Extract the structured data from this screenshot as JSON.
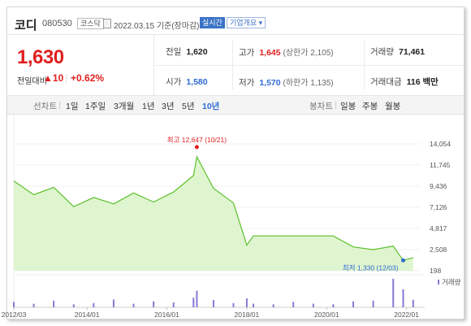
{
  "header": {
    "name": "코디",
    "code": "080530",
    "market": "코스닥",
    "date": "2022.03.15 기준(장마감)",
    "live_badge": "실시간",
    "corp_badge": "기업개요 ▾"
  },
  "price": {
    "current": "1,630",
    "change_label": "전일대비",
    "change_arrow": "▲",
    "change_value": "10",
    "change_rate": "+0.62%"
  },
  "stats": {
    "prev_close_label": "전일",
    "prev_close": "1,620",
    "high_label": "고가",
    "high": "1,645",
    "upper_limit": "(상한가 2,105)",
    "volume_label": "거래량",
    "volume": "71,461",
    "open_label": "시가",
    "open": "1,580",
    "low_label": "저가",
    "low": "1,570",
    "lower_limit": "(하한가 1,135)",
    "amount_label": "거래대금",
    "amount": "116 백만"
  },
  "tabs": {
    "line_label": "선차트",
    "periods": [
      "1일",
      "1주일",
      "3개월",
      "1년",
      "3년",
      "5년",
      "10년"
    ],
    "selected_period": "10년",
    "candle_label": "봉차트",
    "candles": [
      "일봉",
      "주봉",
      "월봉"
    ]
  },
  "colors": {
    "up": "#e01f1f",
    "down": "#2d6bd3",
    "line": "#5cc02c",
    "area": "#dff5cf",
    "volume_bar": "#8a78d6"
  },
  "chart_data": {
    "type": "area",
    "x": [
      "2012-03",
      "2012-09",
      "2013-03",
      "2013-09",
      "2014-03",
      "2014-09",
      "2015-03",
      "2015-09",
      "2016-03",
      "2016-09",
      "2016-10",
      "2017-03",
      "2017-09",
      "2018-01",
      "2018-03",
      "2018-09",
      "2019-03",
      "2019-09",
      "2020-03",
      "2020-09",
      "2021-03",
      "2021-09",
      "2021-12",
      "2022-03"
    ],
    "series": [
      {
        "values": [
          10000,
          8500,
          9300,
          7200,
          8200,
          7500,
          8700,
          7700,
          8800,
          10600,
          12647,
          9200,
          7600,
          3000,
          4000,
          4000,
          4000,
          4000,
          4000,
          2800,
          2500,
          2900,
          1330,
          1630
        ]
      }
    ],
    "ylim": [
      198,
      14054
    ],
    "y_ticks": [
      "14,054",
      "11,745",
      "9,436",
      "7,126",
      "4,817",
      "2,508",
      "198"
    ],
    "x_ticks": [
      "2012/03",
      "2014/01",
      "2016/01",
      "2018/01",
      "2020/01",
      "2022/01"
    ],
    "max_annotation": "최고 12,647 (10/21)",
    "min_annotation": "최저 1,330 (12/03)",
    "volume_label": "거래량",
    "volume": [
      0.18,
      0.12,
      0.22,
      0.1,
      0.14,
      0.26,
      0.12,
      0.2,
      0.16,
      0.32,
      0.55,
      0.24,
      0.14,
      0.3,
      0.12,
      0.1,
      0.18,
      0.12,
      0.1,
      0.2,
      0.22,
      0.95,
      0.6,
      0.25
    ]
  }
}
